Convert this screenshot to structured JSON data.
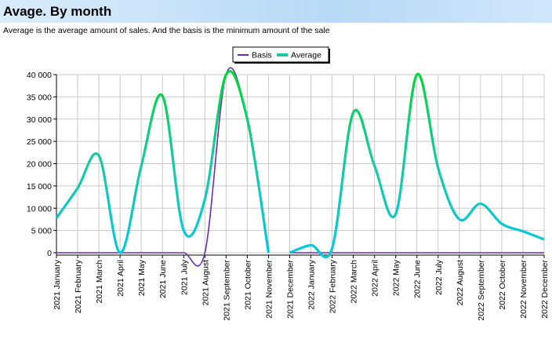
{
  "header": {
    "title": "Avage. By month",
    "subtitle": "Average is the average amount of sales. And the basis is the minimum amount of the sale"
  },
  "colors": {
    "average_gradient": [
      "#00c9e0",
      "#19c9a6",
      "#00d63a"
    ],
    "basis": "#6a2bb8",
    "grid": "#c8c8c8",
    "header_bg": "#c6e1f8"
  },
  "chart_data": {
    "type": "line",
    "title": "",
    "xlabel": "",
    "ylabel": "",
    "ylim": [
      0,
      40000
    ],
    "y_ticks": [
      "0",
      "5 000",
      "10 000",
      "15 000",
      "20 000",
      "25 000",
      "30 000",
      "35 000",
      "40 000"
    ],
    "grid": true,
    "legend_position": "top-center",
    "categories": [
      "2021 January",
      "2021 February",
      "2021 March",
      "2021 April",
      "2021 May",
      "2021 June",
      "2021 July",
      "2021 August",
      "2021 September",
      "2021 October",
      "2021 November",
      "2021 December",
      "2022 January",
      "2022 February",
      "2022 March",
      "2022 April",
      "2022 May",
      "2022 June",
      "2022 July",
      "2022 August",
      "2022 September",
      "2022 October",
      "2022 November",
      "2022 December"
    ],
    "series": [
      {
        "name": "Basis",
        "values": [
          0,
          0,
          0,
          0,
          0,
          0,
          0,
          0,
          40000,
          30000,
          0,
          0,
          0,
          0,
          0,
          0,
          0,
          0,
          0,
          0,
          0,
          0,
          0,
          0
        ]
      },
      {
        "name": "Average",
        "values": [
          7800,
          14500,
          21800,
          0,
          19500,
          35200,
          5000,
          12000,
          40000,
          30000,
          0,
          0,
          1700,
          1000,
          31500,
          19500,
          8700,
          40000,
          19000,
          7500,
          11000,
          6500,
          4800,
          3000
        ]
      }
    ]
  }
}
